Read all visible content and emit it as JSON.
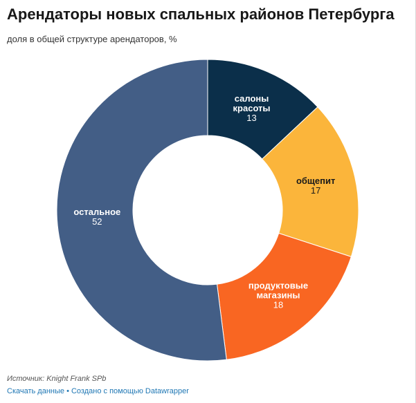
{
  "header": {
    "title": "Арендаторы новых спальных районов Петербурга",
    "subtitle": "доля в общей структуре арендаторов, %"
  },
  "chart_data": {
    "type": "pie",
    "donut": true,
    "title": "Арендаторы новых спальных районов Петербурга",
    "subtitle": "доля в общей структуре арендаторов, %",
    "slices": [
      {
        "label": "салоны красоты",
        "label_lines": [
          "салоны",
          "красоты"
        ],
        "value": 13,
        "color": "#0b2f4a",
        "label_color": "#ffffff"
      },
      {
        "label": "общепит",
        "label_lines": [
          "общепит"
        ],
        "value": 17,
        "color": "#fbb53b",
        "label_color": "#1a1a1a"
      },
      {
        "label": "продуктовые магазины",
        "label_lines": [
          "продуктовые",
          "магазины"
        ],
        "value": 18,
        "color": "#f96622",
        "label_color": "#ffffff"
      },
      {
        "label": "остальное",
        "label_lines": [
          "остальное"
        ],
        "value": 52,
        "color": "#435e86",
        "label_color": "#ffffff"
      }
    ]
  },
  "footer": {
    "source": "Источник: Knight Frank SPb",
    "download_link": "Скачать данные",
    "separator": " • ",
    "created_with": "Создано с помощью Datawrapper"
  }
}
